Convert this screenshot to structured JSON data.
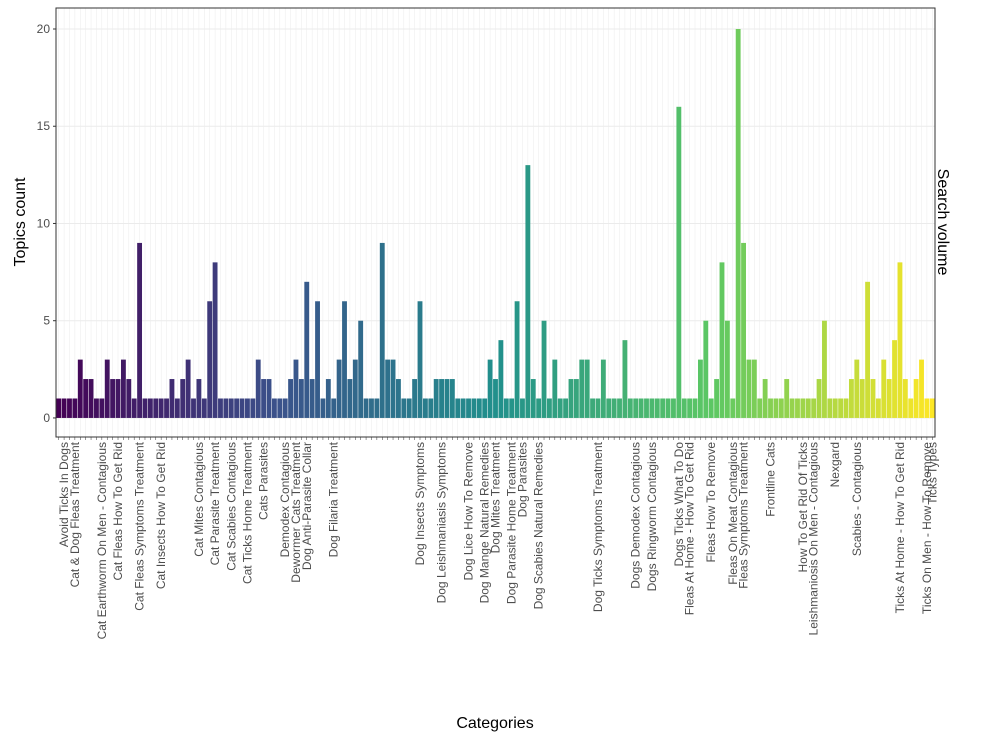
{
  "chart_data": {
    "type": "bar",
    "x_label": "Categories",
    "y_label": "Topics count",
    "y2_label": "Search volume",
    "categories": [
      null,
      "Avoid Ticks In Dogs",
      null,
      "Cat & Dog Fleas Treatment",
      null,
      null,
      null,
      null,
      "Cat Earthworm On Men - Contagious",
      null,
      null,
      "Cat Fleas How To Get Rid",
      null,
      null,
      null,
      "Cat Fleas Symptoms Treatment",
      null,
      null,
      null,
      "Cat Insects How To Get Rid",
      null,
      null,
      null,
      null,
      null,
      null,
      "Cat Mites Contagious",
      null,
      null,
      "Cat Parasite Treatment",
      null,
      null,
      "Cat Scabies Contagious",
      null,
      null,
      "Cat Ticks Home Treatment",
      null,
      null,
      "Cats Parasites",
      null,
      null,
      null,
      "Demodex Contagious",
      null,
      "Dewormer Cats Treatment",
      null,
      "Dog Anti-Parasite Collar",
      null,
      null,
      null,
      null,
      "Dog Filaria Treatment",
      null,
      null,
      null,
      null,
      null,
      null,
      null,
      null,
      null,
      null,
      null,
      null,
      null,
      null,
      null,
      "Dog Insects Symptoms",
      null,
      null,
      null,
      "Dog Leishmaniasis Symptoms",
      null,
      null,
      null,
      null,
      "Dog Lice How To Remove",
      null,
      null,
      "Dog Mange Natural Remedies",
      null,
      "Dog Mites Treatment",
      null,
      null,
      "Dog Parasite Home Treatment",
      null,
      "Dog Parasites",
      null,
      null,
      "Dog Scabies Natural Remedies",
      null,
      null,
      null,
      null,
      null,
      null,
      null,
      null,
      null,
      null,
      "Dog Ticks Symptoms Treatment",
      null,
      null,
      null,
      null,
      null,
      null,
      "Dogs Demodex Contagious",
      null,
      null,
      "Dogs Ringworm Contagious",
      null,
      null,
      null,
      null,
      "Dogs Ticks What To Do",
      null,
      "Fleas At Home - How To Get Rid",
      null,
      null,
      null,
      "Fleas How To Remove",
      null,
      null,
      null,
      "Fleas On Meat Contagious",
      null,
      "Fleas Symptoms Treatment",
      null,
      null,
      null,
      null,
      "Frontline Cats",
      null,
      null,
      null,
      null,
      null,
      "How To Get Rid Of Ticks",
      null,
      "Leishmaniosis On Men - Contagious",
      null,
      null,
      null,
      "Nexgard",
      null,
      null,
      null,
      "Scabies - Contagious",
      null,
      null,
      null,
      null,
      null,
      null,
      null,
      "Ticks At Home - How To Get Rid",
      null,
      null,
      null,
      null,
      "Ticks On Men - How To Remove",
      "Ticks Types"
    ],
    "values": [
      1,
      1,
      1,
      1,
      3,
      2,
      2,
      1,
      1,
      3,
      2,
      2,
      3,
      2,
      1,
      9,
      1,
      1,
      1,
      1,
      1,
      2,
      1,
      2,
      3,
      1,
      2,
      1,
      6,
      8,
      1,
      1,
      1,
      1,
      1,
      1,
      1,
      3,
      2,
      2,
      1,
      1,
      1,
      2,
      3,
      2,
      7,
      2,
      6,
      1,
      2,
      1,
      3,
      6,
      2,
      3,
      5,
      1,
      1,
      1,
      9,
      3,
      3,
      2,
      1,
      1,
      2,
      6,
      1,
      1,
      2,
      2,
      2,
      2,
      1,
      1,
      1,
      1,
      1,
      1,
      3,
      2,
      4,
      1,
      1,
      6,
      1,
      13,
      2,
      1,
      5,
      1,
      3,
      1,
      1,
      2,
      2,
      3,
      3,
      1,
      1,
      3,
      1,
      1,
      1,
      4,
      1,
      1,
      1,
      1,
      1,
      1,
      1,
      1,
      1,
      16,
      1,
      1,
      1,
      3,
      5,
      1,
      2,
      8,
      5,
      1,
      20,
      9,
      3,
      3,
      1,
      2,
      1,
      1,
      1,
      2,
      1,
      1,
      1,
      1,
      1,
      2,
      5,
      1,
      1,
      1,
      1,
      2,
      3,
      2,
      7,
      2,
      1,
      3,
      2,
      4,
      8,
      2,
      1,
      2,
      3,
      1,
      1
    ],
    "color_scale": [
      "#440154",
      "#3b528b",
      "#21908c",
      "#5dc863",
      "#fde725"
    ],
    "ylim": [
      -0.98,
      21.08
    ],
    "yticks": [
      0,
      5,
      10,
      15,
      20
    ],
    "grid": true
  }
}
